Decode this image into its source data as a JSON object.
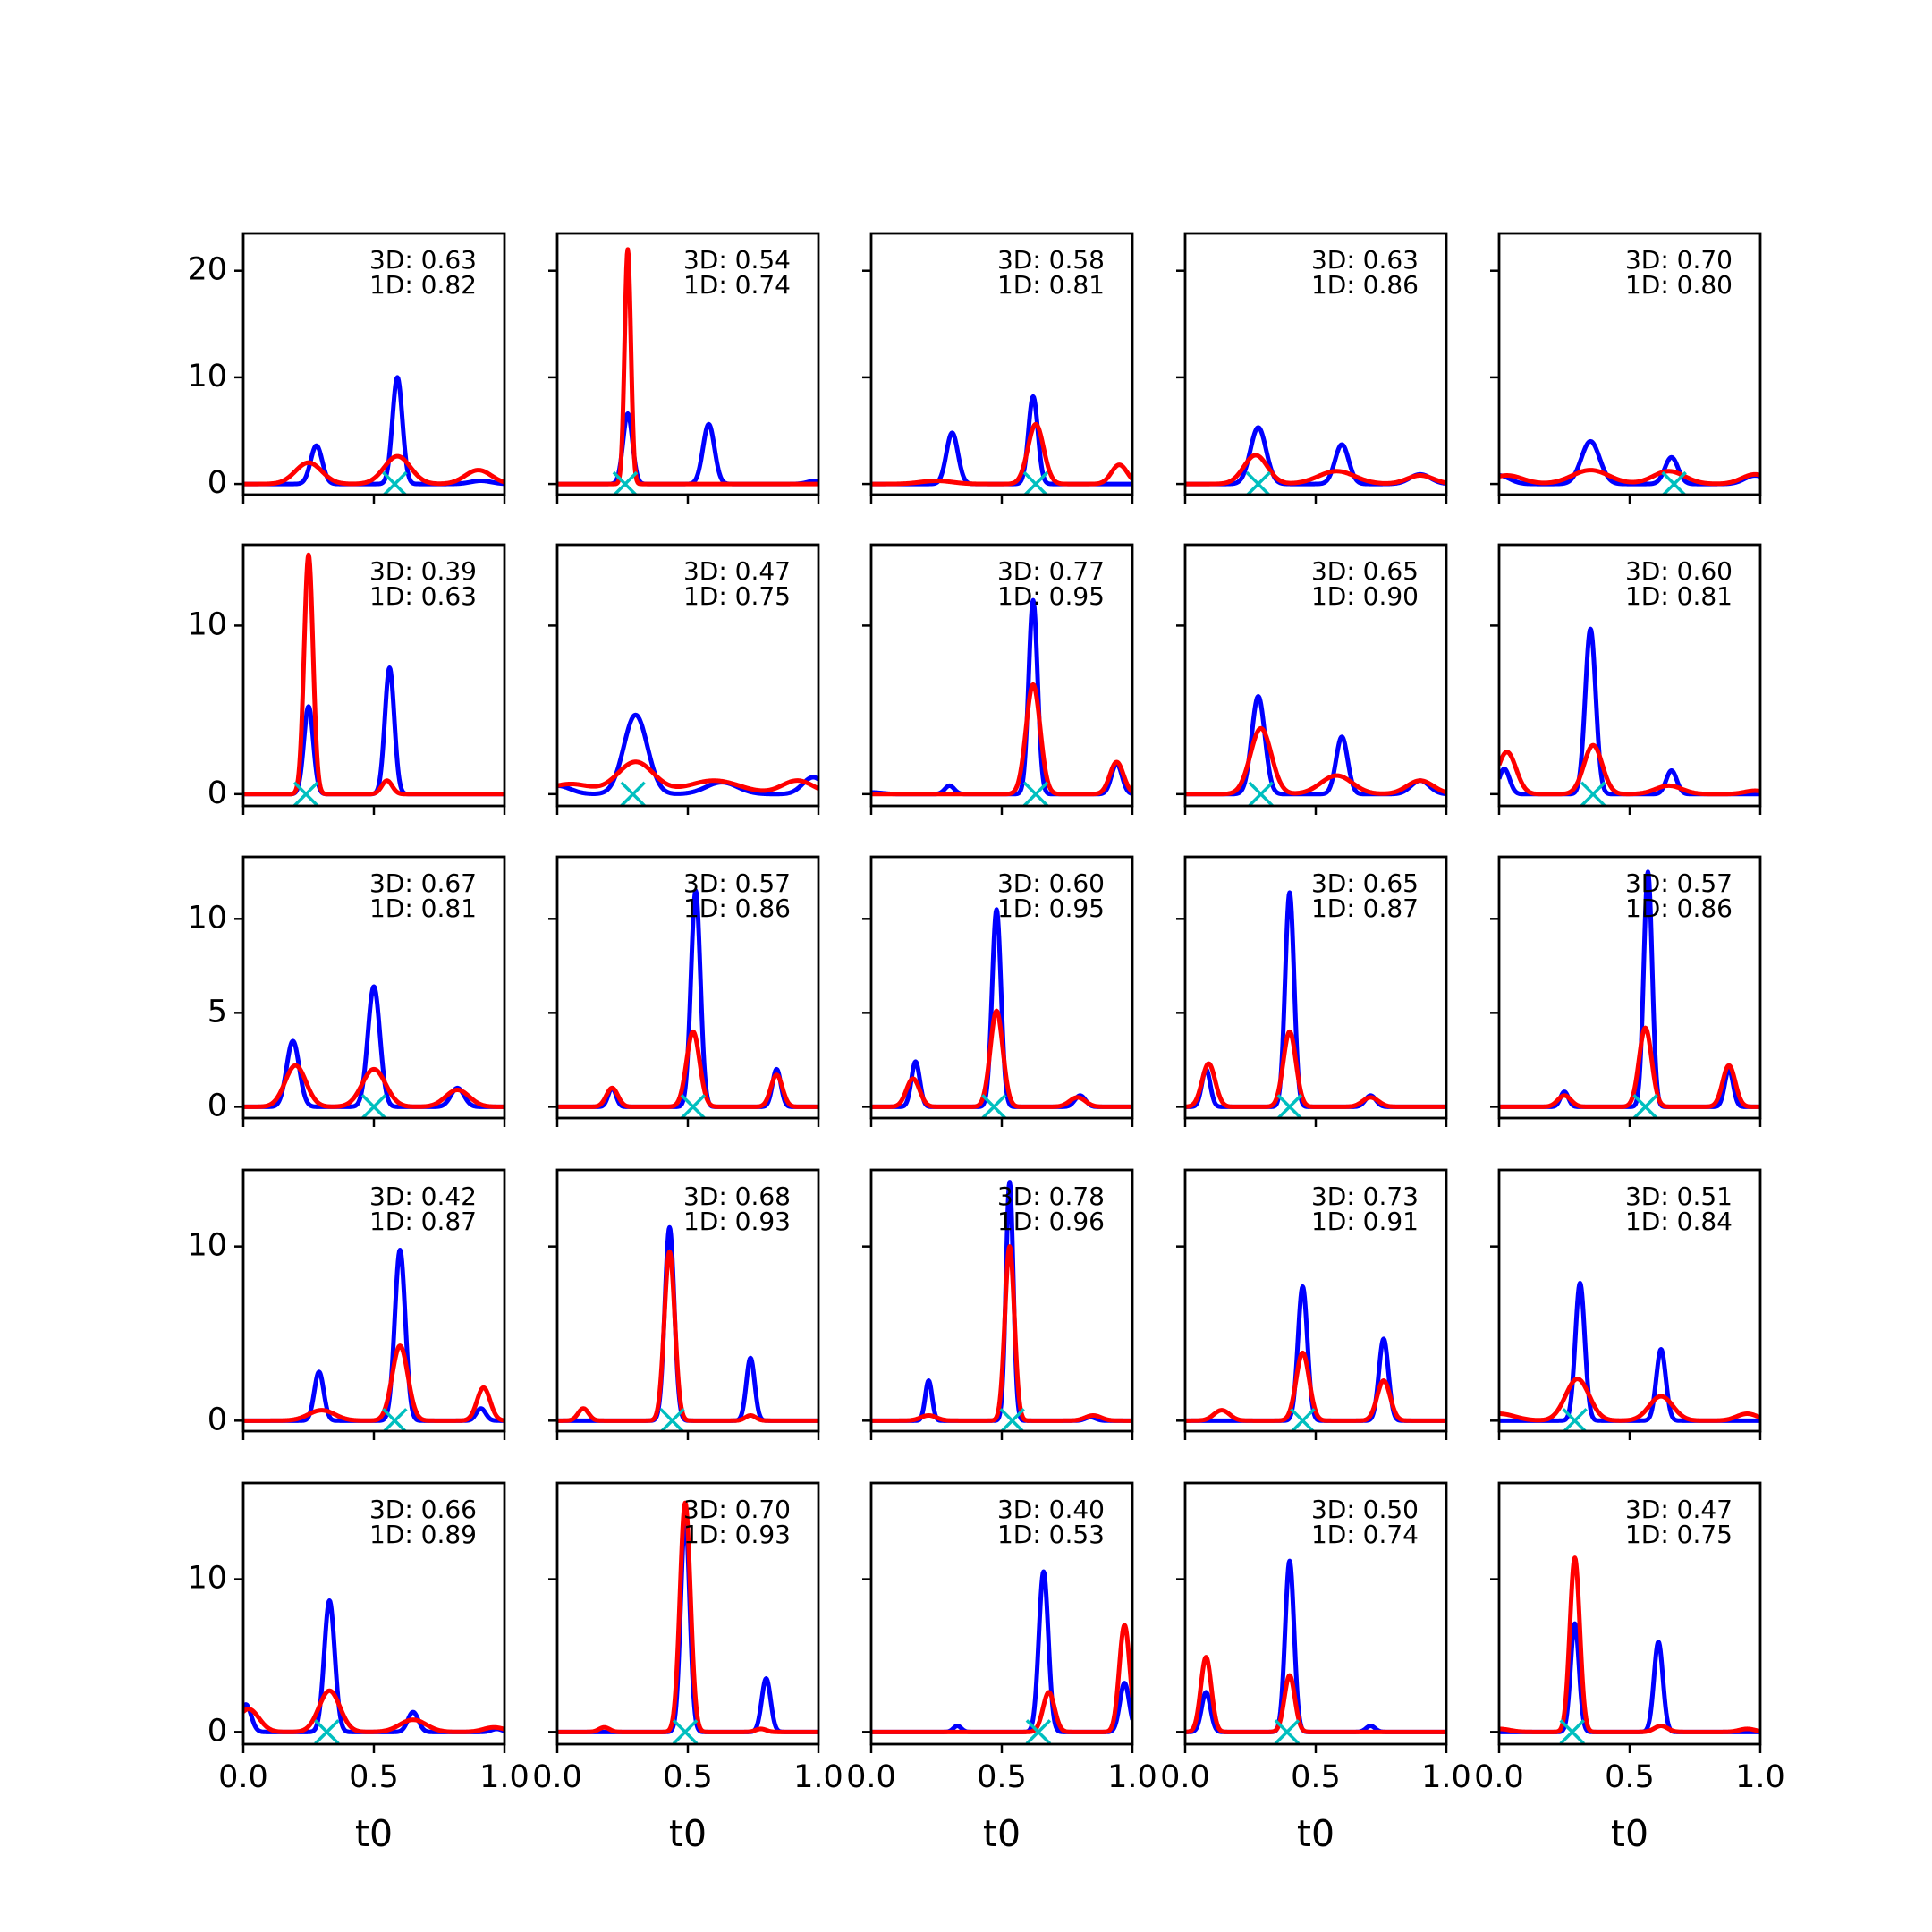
{
  "chart_data": {
    "type": "line",
    "layout": {
      "rows": 5,
      "cols": 5,
      "sharex": true,
      "sharey": "row"
    },
    "xlabel": "t0",
    "xlim": [
      0,
      1
    ],
    "xticks": [
      0,
      0.5,
      1
    ],
    "xtick_labels": [
      "0.0",
      "0.5",
      "1.0"
    ],
    "colors": {
      "series_3d": "#0000ff",
      "series_1d": "#ff0000",
      "marker": "#00bfbf"
    },
    "rows": [
      {
        "ylim": [
          -1,
          23.5
        ],
        "yticks": [
          0,
          10,
          20
        ]
      },
      {
        "ylim": [
          -0.7,
          14.8
        ],
        "yticks": [
          0,
          10
        ]
      },
      {
        "ylim": [
          -0.6,
          13.3
        ],
        "yticks": [
          0,
          5,
          10
        ]
      },
      {
        "ylim": [
          -0.6,
          14.4
        ],
        "yticks": [
          0,
          10
        ]
      },
      {
        "ylim": [
          -0.8,
          16.3
        ],
        "yticks": [
          0,
          10
        ]
      }
    ],
    "panels": [
      {
        "row": 0,
        "col": 0,
        "label_3d": "3D: 0.63",
        "label_1d": "1D: 0.82",
        "marker_x": 0.58,
        "blue": [
          [
            0.28,
            3.6,
            0.022
          ],
          [
            0.59,
            10.0,
            0.019
          ],
          [
            0.91,
            0.3,
            0.04
          ]
        ],
        "red": [
          [
            0.0,
            0.0,
            0.05
          ],
          [
            0.25,
            2.0,
            0.05
          ],
          [
            0.59,
            2.6,
            0.05
          ],
          [
            0.9,
            1.3,
            0.05
          ]
        ]
      },
      {
        "row": 0,
        "col": 1,
        "label_3d": "3D: 0.54",
        "label_1d": "1D: 0.74",
        "marker_x": 0.26,
        "blue": [
          [
            0.27,
            6.6,
            0.018
          ],
          [
            0.58,
            5.6,
            0.022
          ],
          [
            0.99,
            0.3,
            0.03
          ]
        ],
        "red": [
          [
            0.27,
            22.0,
            0.012
          ]
        ]
      },
      {
        "row": 0,
        "col": 2,
        "label_3d": "3D: 0.58",
        "label_1d": "1D: 0.81",
        "marker_x": 0.63,
        "blue": [
          [
            0.31,
            4.8,
            0.022
          ],
          [
            0.62,
            8.2,
            0.018
          ]
        ],
        "red": [
          [
            0.25,
            0.3,
            0.06
          ],
          [
            0.63,
            5.6,
            0.03
          ],
          [
            0.95,
            1.8,
            0.03
          ]
        ]
      },
      {
        "row": 0,
        "col": 3,
        "label_3d": "3D: 0.63",
        "label_1d": "1D: 0.86",
        "marker_x": 0.28,
        "blue": [
          [
            0.28,
            5.3,
            0.03
          ],
          [
            0.6,
            3.7,
            0.026
          ],
          [
            0.9,
            0.9,
            0.04
          ]
        ],
        "red": [
          [
            0.27,
            2.7,
            0.045
          ],
          [
            0.58,
            1.2,
            0.07
          ],
          [
            0.9,
            0.8,
            0.05
          ]
        ]
      },
      {
        "row": 0,
        "col": 4,
        "label_3d": "3D: 0.70",
        "label_1d": "1D: 0.80",
        "marker_x": 0.67,
        "blue": [
          [
            0.0,
            0.8,
            0.04
          ],
          [
            0.35,
            4.0,
            0.035
          ],
          [
            0.66,
            2.5,
            0.025
          ],
          [
            0.98,
            0.8,
            0.04
          ]
        ],
        "red": [
          [
            0.03,
            0.8,
            0.06
          ],
          [
            0.35,
            1.3,
            0.07
          ],
          [
            0.65,
            1.2,
            0.06
          ],
          [
            0.98,
            0.9,
            0.05
          ]
        ]
      },
      {
        "row": 1,
        "col": 0,
        "label_3d": "3D: 0.39",
        "label_1d": "1D: 0.63",
        "marker_x": 0.24,
        "blue": [
          [
            0.25,
            5.2,
            0.018
          ],
          [
            0.56,
            7.5,
            0.018
          ]
        ],
        "red": [
          [
            0.25,
            14.2,
            0.017
          ],
          [
            0.55,
            0.8,
            0.02
          ]
        ]
      },
      {
        "row": 1,
        "col": 1,
        "label_3d": "3D: 0.47",
        "label_1d": "1D: 0.75",
        "marker_x": 0.29,
        "blue": [
          [
            0.0,
            0.5,
            0.05
          ],
          [
            0.3,
            4.7,
            0.045
          ],
          [
            0.63,
            0.7,
            0.06
          ],
          [
            0.98,
            1.0,
            0.04
          ]
        ],
        "red": [
          [
            0.05,
            0.6,
            0.08
          ],
          [
            0.3,
            1.9,
            0.07
          ],
          [
            0.6,
            0.8,
            0.1
          ],
          [
            0.92,
            0.8,
            0.06
          ]
        ]
      },
      {
        "row": 1,
        "col": 2,
        "label_3d": "3D: 0.77",
        "label_1d": "1D: 0.95",
        "marker_x": 0.63,
        "blue": [
          [
            0.0,
            0.1,
            0.04
          ],
          [
            0.3,
            0.5,
            0.018
          ],
          [
            0.62,
            11.5,
            0.017
          ],
          [
            0.94,
            1.8,
            0.02
          ]
        ],
        "red": [
          [
            0.62,
            6.5,
            0.027
          ],
          [
            0.94,
            1.9,
            0.026
          ]
        ]
      },
      {
        "row": 1,
        "col": 3,
        "label_3d": "3D: 0.65",
        "label_1d": "1D: 0.90",
        "marker_x": 0.29,
        "blue": [
          [
            0.28,
            5.8,
            0.025
          ],
          [
            0.6,
            3.4,
            0.022
          ],
          [
            0.9,
            0.8,
            0.035
          ]
        ],
        "red": [
          [
            0.29,
            3.9,
            0.04
          ],
          [
            0.58,
            1.1,
            0.06
          ],
          [
            0.9,
            0.8,
            0.05
          ]
        ]
      },
      {
        "row": 1,
        "col": 4,
        "label_3d": "3D: 0.60",
        "label_1d": "1D: 0.81",
        "marker_x": 0.36,
        "blue": [
          [
            0.02,
            1.5,
            0.02
          ],
          [
            0.35,
            9.8,
            0.02
          ],
          [
            0.66,
            1.4,
            0.02
          ]
        ],
        "red": [
          [
            0.03,
            2.5,
            0.035
          ],
          [
            0.36,
            2.9,
            0.035
          ],
          [
            0.65,
            0.5,
            0.05
          ],
          [
            0.98,
            0.2,
            0.04
          ]
        ]
      },
      {
        "row": 2,
        "col": 0,
        "label_3d": "3D: 0.67",
        "label_1d": "1D: 0.81",
        "marker_x": 0.5,
        "blue": [
          [
            0.19,
            3.5,
            0.024
          ],
          [
            0.5,
            6.4,
            0.023
          ],
          [
            0.82,
            1.0,
            0.025
          ]
        ],
        "red": [
          [
            0.2,
            2.2,
            0.04
          ],
          [
            0.5,
            2.0,
            0.045
          ],
          [
            0.82,
            0.9,
            0.045
          ]
        ]
      },
      {
        "row": 2,
        "col": 1,
        "label_3d": "3D: 0.57",
        "label_1d": "1D: 0.86",
        "marker_x": 0.52,
        "blue": [
          [
            0.21,
            1.0,
            0.015
          ],
          [
            0.53,
            11.5,
            0.018
          ],
          [
            0.84,
            2.0,
            0.016
          ]
        ],
        "red": [
          [
            0.21,
            1.0,
            0.022
          ],
          [
            0.52,
            4.0,
            0.025
          ],
          [
            0.84,
            1.7,
            0.022
          ]
        ]
      },
      {
        "row": 2,
        "col": 2,
        "label_3d": "3D: 0.60",
        "label_1d": "1D: 0.95",
        "marker_x": 0.47,
        "blue": [
          [
            0.17,
            2.4,
            0.016
          ],
          [
            0.48,
            10.5,
            0.017
          ],
          [
            0.8,
            0.6,
            0.02
          ]
        ],
        "red": [
          [
            0.16,
            1.5,
            0.025
          ],
          [
            0.48,
            5.1,
            0.024
          ],
          [
            0.79,
            0.5,
            0.03
          ]
        ]
      },
      {
        "row": 2,
        "col": 3,
        "label_3d": "3D: 0.65",
        "label_1d": "1D: 0.87",
        "marker_x": 0.4,
        "blue": [
          [
            0.08,
            2.0,
            0.016
          ],
          [
            0.4,
            11.4,
            0.017
          ],
          [
            0.71,
            0.6,
            0.02
          ]
        ],
        "red": [
          [
            0.09,
            2.3,
            0.025
          ],
          [
            0.4,
            4.0,
            0.024
          ],
          [
            0.71,
            0.5,
            0.03
          ]
        ]
      },
      {
        "row": 2,
        "col": 4,
        "label_3d": "3D: 0.57",
        "label_1d": "1D: 0.86",
        "marker_x": 0.56,
        "blue": [
          [
            0.25,
            0.8,
            0.015
          ],
          [
            0.57,
            12.5,
            0.016
          ],
          [
            0.88,
            2.0,
            0.016
          ]
        ],
        "red": [
          [
            0.25,
            0.6,
            0.025
          ],
          [
            0.56,
            4.2,
            0.024
          ],
          [
            0.88,
            2.2,
            0.024
          ]
        ]
      },
      {
        "row": 3,
        "col": 0,
        "label_3d": "3D: 0.42",
        "label_1d": "1D: 0.87",
        "marker_x": 0.58,
        "blue": [
          [
            0.29,
            2.8,
            0.018
          ],
          [
            0.6,
            9.8,
            0.02
          ],
          [
            0.91,
            0.7,
            0.018
          ]
        ],
        "red": [
          [
            0.3,
            0.6,
            0.05
          ],
          [
            0.6,
            4.3,
            0.03
          ],
          [
            0.92,
            1.9,
            0.025
          ]
        ]
      },
      {
        "row": 3,
        "col": 1,
        "label_3d": "3D: 0.68",
        "label_1d": "1D: 0.93",
        "marker_x": 0.44,
        "blue": [
          [
            0.43,
            11.1,
            0.018
          ],
          [
            0.74,
            3.6,
            0.016
          ]
        ],
        "red": [
          [
            0.1,
            0.7,
            0.02
          ],
          [
            0.43,
            9.7,
            0.02
          ],
          [
            0.74,
            0.3,
            0.02
          ]
        ]
      },
      {
        "row": 3,
        "col": 2,
        "label_3d": "3D: 0.78",
        "label_1d": "1D: 0.96",
        "marker_x": 0.54,
        "blue": [
          [
            0.22,
            2.3,
            0.013
          ],
          [
            0.53,
            13.7,
            0.014
          ],
          [
            0.84,
            0.2,
            0.02
          ]
        ],
        "red": [
          [
            0.22,
            0.3,
            0.03
          ],
          [
            0.53,
            10.0,
            0.018
          ],
          [
            0.85,
            0.3,
            0.03
          ]
        ]
      },
      {
        "row": 3,
        "col": 3,
        "label_3d": "3D: 0.73",
        "label_1d": "1D: 0.91",
        "marker_x": 0.45,
        "blue": [
          [
            0.45,
            7.7,
            0.018
          ],
          [
            0.76,
            4.7,
            0.018
          ]
        ],
        "red": [
          [
            0.14,
            0.6,
            0.03
          ],
          [
            0.45,
            3.9,
            0.025
          ],
          [
            0.76,
            2.3,
            0.025
          ]
        ]
      },
      {
        "row": 3,
        "col": 4,
        "label_3d": "3D: 0.51",
        "label_1d": "1D: 0.84",
        "marker_x": 0.29,
        "blue": [
          [
            0.31,
            7.9,
            0.018
          ],
          [
            0.62,
            4.1,
            0.018
          ]
        ],
        "red": [
          [
            0.0,
            0.4,
            0.06
          ],
          [
            0.3,
            2.4,
            0.045
          ],
          [
            0.62,
            1.4,
            0.045
          ],
          [
            0.95,
            0.4,
            0.04
          ]
        ]
      },
      {
        "row": 4,
        "col": 0,
        "label_3d": "3D: 0.66",
        "label_1d": "1D: 0.89",
        "marker_x": 0.32,
        "blue": [
          [
            0.01,
            1.8,
            0.02
          ],
          [
            0.33,
            8.6,
            0.02
          ],
          [
            0.65,
            1.3,
            0.02
          ],
          [
            0.97,
            0.2,
            0.02
          ]
        ],
        "red": [
          [
            0.02,
            1.5,
            0.04
          ],
          [
            0.33,
            2.7,
            0.04
          ],
          [
            0.65,
            0.8,
            0.05
          ],
          [
            0.96,
            0.3,
            0.04
          ]
        ]
      },
      {
        "row": 4,
        "col": 1,
        "label_3d": "3D: 0.70",
        "label_1d": "1D: 0.93",
        "marker_x": 0.49,
        "blue": [
          [
            0.49,
            14.0,
            0.017
          ],
          [
            0.8,
            3.5,
            0.017
          ]
        ],
        "red": [
          [
            0.18,
            0.3,
            0.02
          ],
          [
            0.49,
            15.0,
            0.02
          ],
          [
            0.78,
            0.2,
            0.02
          ]
        ]
      },
      {
        "row": 4,
        "col": 2,
        "label_3d": "3D: 0.40",
        "label_1d": "1D: 0.53",
        "marker_x": 0.64,
        "blue": [
          [
            0.33,
            0.4,
            0.015
          ],
          [
            0.66,
            10.5,
            0.018
          ],
          [
            0.97,
            3.2,
            0.018
          ]
        ],
        "red": [
          [
            0.68,
            2.6,
            0.022
          ],
          [
            0.97,
            7.0,
            0.02
          ]
        ]
      },
      {
        "row": 4,
        "col": 3,
        "label_3d": "3D: 0.50",
        "label_1d": "1D: 0.74",
        "marker_x": 0.39,
        "blue": [
          [
            0.08,
            2.6,
            0.017
          ],
          [
            0.4,
            11.2,
            0.017
          ],
          [
            0.71,
            0.4,
            0.017
          ]
        ],
        "red": [
          [
            0.08,
            4.9,
            0.02
          ],
          [
            0.4,
            3.7,
            0.02
          ]
        ]
      },
      {
        "row": 4,
        "col": 4,
        "label_3d": "3D: 0.47",
        "label_1d": "1D: 0.75",
        "marker_x": 0.28,
        "blue": [
          [
            0.29,
            7.1,
            0.016
          ],
          [
            0.61,
            5.9,
            0.017
          ]
        ],
        "red": [
          [
            0.0,
            0.2,
            0.04
          ],
          [
            0.29,
            11.4,
            0.019
          ],
          [
            0.62,
            0.4,
            0.025
          ],
          [
            0.95,
            0.2,
            0.03
          ]
        ]
      }
    ]
  }
}
